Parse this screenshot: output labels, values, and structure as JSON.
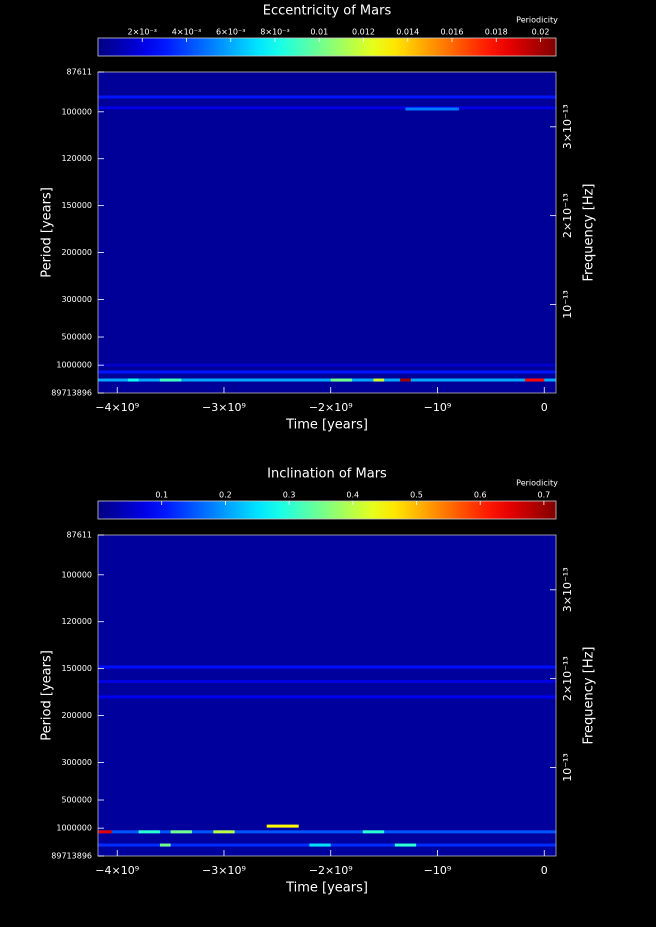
{
  "chart_data": [
    {
      "type": "heatmap",
      "title": "Eccentricity of Mars",
      "colorbar_label": "Periodicity",
      "colormap": "jet",
      "clim": [
        0,
        0.0207
      ],
      "colorbar_ticks": [
        {
          "value": 0.002,
          "label": "2×10⁻³"
        },
        {
          "value": 0.004,
          "label": "4×10⁻³"
        },
        {
          "value": 0.006,
          "label": "6×10⁻³"
        },
        {
          "value": 0.008,
          "label": "8×10⁻³"
        },
        0.01,
        0.012,
        0.014,
        0.016,
        0.018,
        0.02
      ],
      "xlabel": "Time [years]",
      "ylabel": "Period [years]",
      "y2label": "Frequency [Hz]",
      "xlim": [
        -4180000000,
        110000000
      ],
      "xticks": [
        {
          "value": -4000000000,
          "label": "−4×10⁹"
        },
        {
          "value": -3000000000,
          "label": "−3×10⁹"
        },
        {
          "value": -2000000000,
          "label": "−2×10⁹"
        },
        {
          "value": -1000000000,
          "label": "−10⁹"
        },
        0
      ],
      "yscale": "inverse",
      "ylim": [
        87611,
        89713896
      ],
      "yticks": [
        87611,
        100000,
        120000,
        150000,
        200000,
        300000,
        500000,
        1000000,
        89713896
      ],
      "y2lim": [
        3.617e-13,
        3.53e-16
      ],
      "y2ticks": [
        {
          "value": 1e-13,
          "label": "10⁻¹³"
        },
        {
          "value": 2e-13,
          "label": "2×10⁻¹³"
        },
        {
          "value": 3e-13,
          "label": "3×10⁻¹³"
        }
      ],
      "background": 0.0005,
      "streaks": [
        {
          "period": 95000,
          "x": [
            -4180000000,
            110000000
          ],
          "value": 0.003
        },
        {
          "period": 98600,
          "x": [
            -4180000000,
            110000000
          ],
          "value": 0.002
        },
        {
          "period": 99000,
          "x": [
            -1300000000,
            -800000000
          ],
          "value": 0.005
        },
        {
          "period": 1000000,
          "x": [
            -4180000000,
            110000000
          ],
          "value": 0.0015
        },
        {
          "period": 1320000,
          "x": [
            -4180000000,
            110000000
          ],
          "value": 0.003
        },
        {
          "period": 2120000,
          "x": [
            -4180000000,
            110000000
          ],
          "value": 0.006
        },
        {
          "period": 2120000,
          "x": [
            -3900000000,
            -3800000000
          ],
          "value": 0.008
        },
        {
          "period": 2120000,
          "x": [
            -3600000000,
            -3400000000
          ],
          "value": 0.009
        },
        {
          "period": 2120000,
          "x": [
            -2000000000,
            -1800000000
          ],
          "value": 0.01
        },
        {
          "period": 2120000,
          "x": [
            -1600000000,
            -1500000000
          ],
          "value": 0.012
        },
        {
          "period": 2120000,
          "x": [
            -1350000000,
            -1250000000
          ],
          "value": 0.02
        },
        {
          "period": 2120000,
          "x": [
            -180000000,
            0
          ],
          "value": 0.018
        }
      ]
    },
    {
      "type": "heatmap",
      "title": "Inclination of Mars",
      "colorbar_label": "Periodicity",
      "colormap": "jet",
      "clim": [
        0,
        0.719
      ],
      "colorbar_ticks": [
        0.1,
        0.2,
        0.3,
        0.4,
        0.5,
        0.6,
        0.7
      ],
      "xlabel": "Time [years]",
      "ylabel": "Period [years]",
      "y2label": "Frequency [Hz]",
      "xlim": [
        -4180000000,
        110000000
      ],
      "xticks": [
        {
          "value": -4000000000,
          "label": "−4×10⁹"
        },
        {
          "value": -3000000000,
          "label": "−3×10⁹"
        },
        {
          "value": -2000000000,
          "label": "−2×10⁹"
        },
        {
          "value": -1000000000,
          "label": "−10⁹"
        },
        0
      ],
      "yscale": "inverse",
      "ylim": [
        87611,
        89713896
      ],
      "yticks": [
        87611,
        100000,
        120000,
        150000,
        200000,
        300000,
        500000,
        1000000,
        89713896
      ],
      "y2lim": [
        3.617e-13,
        3.53e-16
      ],
      "y2ticks": [
        {
          "value": 1e-13,
          "label": "10⁻¹³"
        },
        {
          "value": 2e-13,
          "label": "2×10⁻¹³"
        },
        {
          "value": 3e-13,
          "label": "3×10⁻¹³"
        }
      ],
      "background": 0.02,
      "streaks": [
        {
          "period": 148700,
          "x": [
            -4180000000,
            110000000
          ],
          "value": 0.1
        },
        {
          "period": 161000,
          "x": [
            -4180000000,
            110000000
          ],
          "value": 0.07
        },
        {
          "period": 176600,
          "x": [
            -4180000000,
            110000000
          ],
          "value": 0.08
        },
        {
          "period": 1150000,
          "x": [
            -4180000000,
            110000000
          ],
          "value": 0.15
        },
        {
          "period": 1150000,
          "x": [
            -4180000000,
            -4050000000
          ],
          "value": 0.65
        },
        {
          "period": 1150000,
          "x": [
            -3800000000,
            -3600000000
          ],
          "value": 0.3
        },
        {
          "period": 1150000,
          "x": [
            -3500000000,
            -3300000000
          ],
          "value": 0.35
        },
        {
          "period": 1150000,
          "x": [
            -3100000000,
            -2900000000
          ],
          "value": 0.4
        },
        {
          "period": 1150000,
          "x": [
            -1700000000,
            -1500000000
          ],
          "value": 0.3
        },
        {
          "period": 932000,
          "x": [
            -2600000000,
            -2300000000
          ],
          "value": 0.45
        },
        {
          "period": 2500000,
          "x": [
            -4180000000,
            110000000
          ],
          "value": 0.12
        },
        {
          "period": 2500000,
          "x": [
            -3600000000,
            -3500000000
          ],
          "value": 0.35
        },
        {
          "period": 2500000,
          "x": [
            -2200000000,
            -2000000000
          ],
          "value": 0.25
        },
        {
          "period": 2500000,
          "x": [
            -1400000000,
            -1200000000
          ],
          "value": 0.3
        }
      ]
    }
  ]
}
